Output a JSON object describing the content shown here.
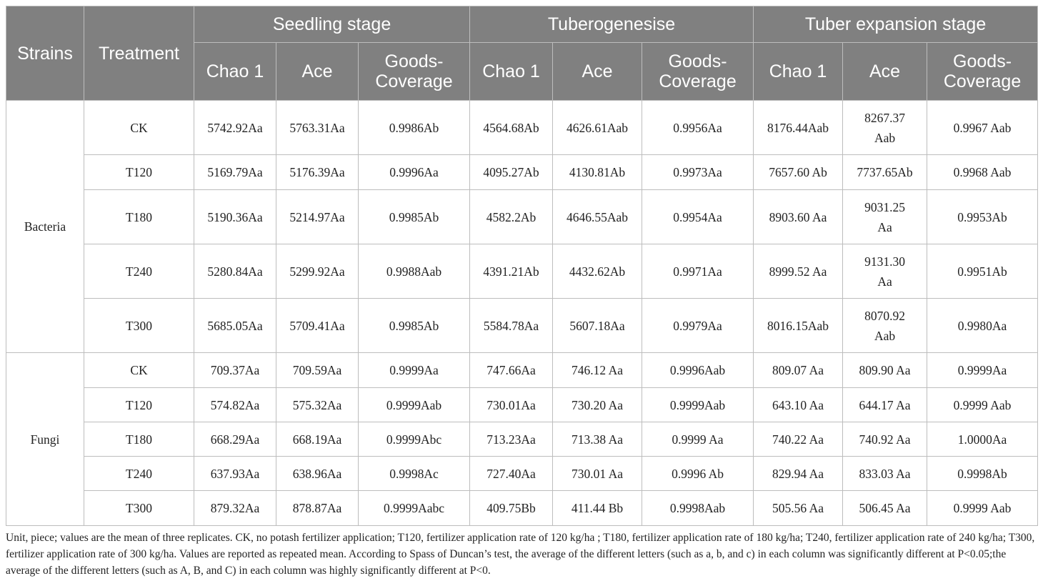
{
  "header": {
    "strains": "Strains",
    "treatment": "Treatment",
    "stages": [
      "Seedling stage",
      "Tuberogenesise",
      "Tuber expansion stage"
    ],
    "metrics": [
      "Chao 1",
      "Ace",
      "Goods-\nCoverage",
      "Chao 1",
      "Ace",
      "Goods-\nCoverage",
      "Chao 1",
      "Ace",
      "Goods-\nCoverage"
    ]
  },
  "groups": [
    {
      "strain": "Bacteria",
      "rows": [
        {
          "treatment": "CK",
          "values": [
            "5742.92Aa",
            "5763.31Aa",
            "0.9986Ab",
            "4564.68Ab",
            "4626.61Aab",
            "0.9956Aa",
            "8176.44Aab",
            "8267.37\nAab",
            "0.9967 Aab"
          ]
        },
        {
          "treatment": "T120",
          "values": [
            "5169.79Aa",
            "5176.39Aa",
            "0.9996Aa",
            "4095.27Ab",
            "4130.81Ab",
            "0.9973Aa",
            "7657.60 Ab",
            "7737.65Ab",
            "0.9968 Aab"
          ]
        },
        {
          "treatment": "T180",
          "values": [
            "5190.36Aa",
            "5214.97Aa",
            "0.9985Ab",
            "4582.2Ab",
            "4646.55Aab",
            "0.9954Aa",
            "8903.60 Aa",
            "9031.25\nAa",
            "0.9953Ab"
          ]
        },
        {
          "treatment": "T240",
          "values": [
            "5280.84Aa",
            "5299.92Aa",
            "0.9988Aab",
            "4391.21Ab",
            "4432.62Ab",
            "0.9971Aa",
            "8999.52 Aa",
            "9131.30\nAa",
            "0.9951Ab"
          ]
        },
        {
          "treatment": "T300",
          "values": [
            "5685.05Aa",
            "5709.41Aa",
            "0.9985Ab",
            "5584.78Aa",
            "5607.18Aa",
            "0.9979Aa",
            "8016.15Aab",
            "8070.92\nAab",
            "0.9980Aa"
          ]
        }
      ]
    },
    {
      "strain": "Fungi",
      "rows": [
        {
          "treatment": "CK",
          "values": [
            "709.37Aa",
            "709.59Aa",
            "0.9999Aa",
            "747.66Aa",
            "746.12 Aa",
            "0.9996Aab",
            "809.07 Aa",
            "809.90 Aa",
            "0.9999Aa"
          ]
        },
        {
          "treatment": "T120",
          "values": [
            "574.82Aa",
            "575.32Aa",
            "0.9999Aab",
            "730.01Aa",
            "730.20 Aa",
            "0.9999Aab",
            "643.10 Aa",
            "644.17 Aa",
            "0.9999 Aab"
          ]
        },
        {
          "treatment": "T180",
          "values": [
            "668.29Aa",
            "668.19Aa",
            "0.9999Abc",
            "713.23Aa",
            "713.38 Aa",
            "0.9999 Aa",
            "740.22 Aa",
            "740.92 Aa",
            "1.0000Aa"
          ]
        },
        {
          "treatment": "T240",
          "values": [
            "637.93Aa",
            "638.96Aa",
            "0.9998Ac",
            "727.40Aa",
            "730.01 Aa",
            "0.9996 Ab",
            "829.94 Aa",
            "833.03 Aa",
            "0.9998Ab"
          ]
        },
        {
          "treatment": "T300",
          "values": [
            "879.32Aa",
            "878.87Aa",
            "0.9999Aabc",
            "409.75Bb",
            "411.44 Bb",
            "0.9998Aab",
            "505.56 Aa",
            "506.45 Aa",
            "0.9999 Aab"
          ]
        }
      ]
    }
  ],
  "footnote": "Unit, piece; values are the mean of three replicates. CK, no potash fertilizer application; T120, fertilizer application rate of 120 kg/ha ; T180, fertilizer application rate of 180 kg/ha; T240, fertilizer application rate of 240 kg/ha; T300, fertilizer application rate of 300 kg/ha. Values are reported as repeated mean. According to Spass of Duncan’s test, the average of the different letters (such as a, b, and c) in each column was significantly different at P<0.05;the average of the different letters (such as A, B, and C) in each column was highly significantly different at P<0."
}
